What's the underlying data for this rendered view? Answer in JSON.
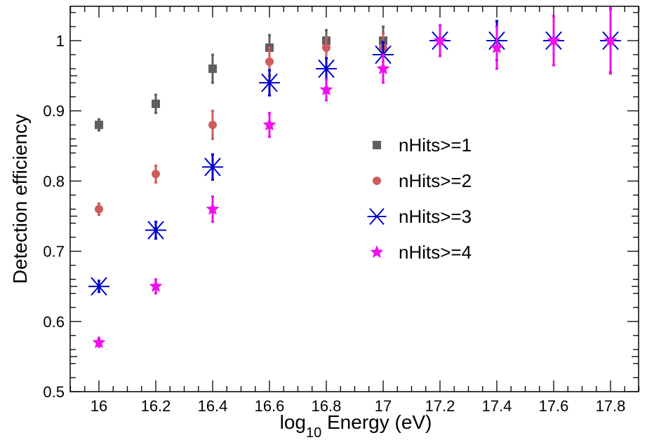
{
  "chart_data": {
    "type": "scatter",
    "title": "",
    "xlabel": {
      "prefix": "log",
      "subscript": "10",
      "suffix": " Energy (eV)"
    },
    "ylabel": "Detection efficiency",
    "xlim": [
      15.9,
      17.9
    ],
    "ylim": [
      0.5,
      1.05
    ],
    "x_ticks": [
      16,
      16.2,
      16.4,
      16.6,
      16.8,
      17,
      17.2,
      17.4,
      17.6,
      17.8
    ],
    "x_tick_labels": [
      "16",
      "16.2",
      "16.4",
      "16.6",
      "16.8",
      "17",
      "17.2",
      "17.4",
      "17.6",
      "17.8"
    ],
    "y_ticks": [
      0.5,
      0.6,
      0.7,
      0.8,
      0.9,
      1.0
    ],
    "y_tick_labels": [
      "0.5",
      "0.6",
      "0.7",
      "0.8",
      "0.9",
      "1"
    ],
    "grid": false,
    "legend_position": "center-right",
    "series": [
      {
        "name": "nHits>=1",
        "marker": "square",
        "color": "#5f5f5f",
        "x": [
          16,
          16.2,
          16.4,
          16.6,
          16.8,
          17
        ],
        "y": [
          0.88,
          0.91,
          0.96,
          0.99,
          1.0,
          1.0
        ],
        "err": [
          0.008,
          0.013,
          0.02,
          0.018,
          0.015,
          0.02
        ]
      },
      {
        "name": "nHits>=2",
        "marker": "circle",
        "color": "#cd5c5c",
        "x": [
          16,
          16.2,
          16.4,
          16.6,
          16.8,
          17
        ],
        "y": [
          0.76,
          0.81,
          0.88,
          0.97,
          0.99,
          0.99
        ],
        "err": [
          0.008,
          0.012,
          0.02,
          0.02,
          0.015,
          0.02
        ]
      },
      {
        "name": "nHits>=3",
        "marker": "asterisk",
        "color": "#0000cc",
        "x": [
          16,
          16.2,
          16.4,
          16.6,
          16.8,
          17,
          17.2,
          17.4,
          17.6,
          17.8
        ],
        "y": [
          0.65,
          0.73,
          0.82,
          0.94,
          0.96,
          0.98,
          1.0,
          1.0,
          1.0,
          1.0
        ],
        "err": [
          0.008,
          0.012,
          0.018,
          0.018,
          0.015,
          0.018,
          0.022,
          0.028,
          0.035,
          0.045
        ]
      },
      {
        "name": "nHits>=4",
        "marker": "star",
        "color": "#ee10ee",
        "x": [
          16,
          16.2,
          16.4,
          16.6,
          16.8,
          17,
          17.2,
          17.4,
          17.6,
          17.8
        ],
        "y": [
          0.57,
          0.65,
          0.76,
          0.88,
          0.93,
          0.96,
          1.0,
          0.99,
          1.0,
          1.0
        ],
        "err": [
          0.006,
          0.01,
          0.018,
          0.017,
          0.015,
          0.02,
          0.022,
          0.03,
          0.035,
          0.047
        ]
      }
    ]
  }
}
